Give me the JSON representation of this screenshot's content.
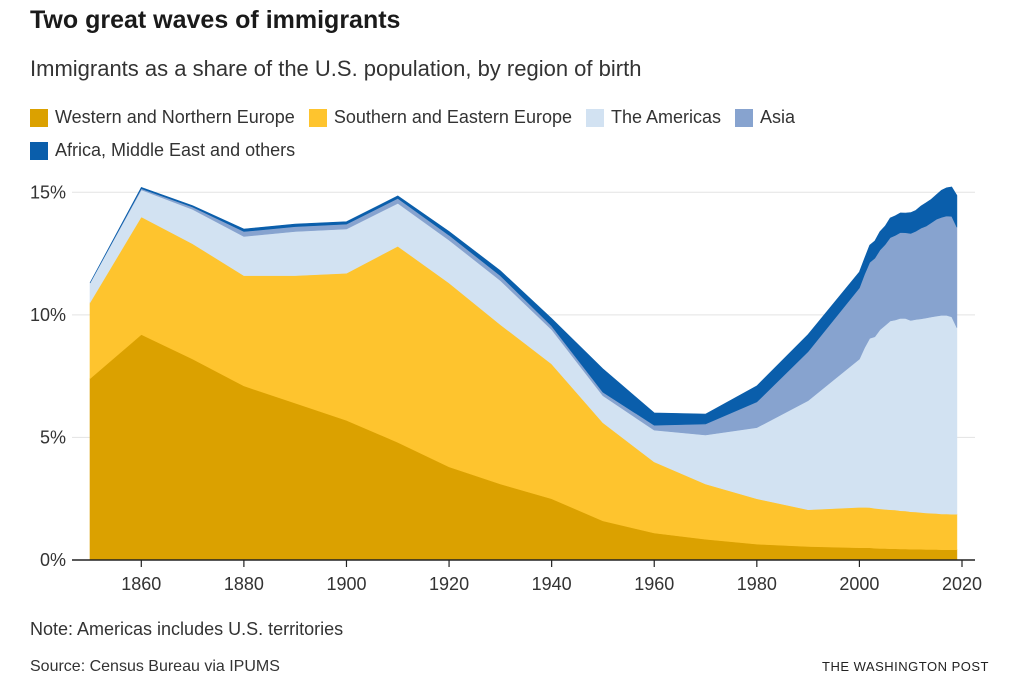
{
  "header": {
    "title": "Two great waves of immigrants",
    "subtitle": "Immigrants as a share of the U.S. population, by region of birth"
  },
  "footer": {
    "note": "Note: Americas includes U.S. territories",
    "source": "Source: Census Bureau via IPUMS",
    "brand": "THE WASHINGTON POST"
  },
  "chart_data": {
    "type": "area",
    "stacked": true,
    "x": [
      1850,
      1860,
      1870,
      1880,
      1890,
      1900,
      1910,
      1920,
      1930,
      1940,
      1950,
      1960,
      1970,
      1980,
      1990,
      2000,
      2001,
      2002,
      2003,
      2004,
      2005,
      2006,
      2007,
      2008,
      2009,
      2010,
      2011,
      2012,
      2013,
      2014,
      2015,
      2016,
      2017,
      2018,
      2019
    ],
    "series": [
      {
        "name": "Western and Northern Europe",
        "color": "#dba100",
        "values": [
          7.4,
          9.2,
          8.2,
          7.1,
          6.4,
          5.7,
          4.8,
          3.8,
          3.1,
          2.5,
          1.6,
          1.1,
          0.85,
          0.65,
          0.55,
          0.5,
          0.5,
          0.5,
          0.48,
          0.47,
          0.47,
          0.46,
          0.46,
          0.45,
          0.45,
          0.44,
          0.44,
          0.44,
          0.43,
          0.43,
          0.43,
          0.42,
          0.42,
          0.42,
          0.42
        ]
      },
      {
        "name": "Southern and Eastern Europe",
        "color": "#fec42e",
        "values": [
          3.1,
          4.8,
          4.7,
          4.5,
          5.2,
          6.0,
          8.0,
          7.5,
          6.5,
          5.5,
          4.0,
          2.9,
          2.25,
          1.85,
          1.5,
          1.65,
          1.65,
          1.64,
          1.63,
          1.62,
          1.6,
          1.59,
          1.58,
          1.56,
          1.55,
          1.53,
          1.52,
          1.5,
          1.49,
          1.48,
          1.47,
          1.46,
          1.46,
          1.45,
          1.45
        ]
      },
      {
        "name": "The Americas",
        "color": "#d2e2f2",
        "values": [
          0.8,
          1.1,
          1.4,
          1.6,
          1.8,
          1.8,
          1.75,
          1.75,
          1.8,
          1.4,
          1.1,
          1.3,
          2.0,
          2.9,
          4.45,
          6.05,
          6.5,
          6.9,
          7.0,
          7.3,
          7.5,
          7.7,
          7.75,
          7.85,
          7.85,
          7.8,
          7.85,
          7.9,
          7.95,
          8.0,
          8.05,
          8.1,
          8.1,
          8.05,
          7.6
        ]
      },
      {
        "name": "Asia",
        "color": "#87a3cf",
        "values": [
          0.0,
          0.05,
          0.1,
          0.2,
          0.2,
          0.2,
          0.2,
          0.2,
          0.2,
          0.15,
          0.15,
          0.2,
          0.45,
          1.05,
          2.0,
          2.9,
          3.0,
          3.1,
          3.2,
          3.25,
          3.3,
          3.4,
          3.45,
          3.5,
          3.5,
          3.55,
          3.6,
          3.7,
          3.75,
          3.85,
          3.95,
          4.0,
          4.05,
          4.1,
          4.1
        ]
      },
      {
        "name": "Africa, Middle East and others",
        "color": "#0a5eab",
        "values": [
          0.0,
          0.05,
          0.05,
          0.1,
          0.1,
          0.1,
          0.1,
          0.15,
          0.2,
          0.3,
          0.95,
          0.5,
          0.4,
          0.65,
          0.7,
          0.65,
          0.65,
          0.7,
          0.7,
          0.75,
          0.75,
          0.8,
          0.8,
          0.8,
          0.8,
          0.85,
          0.85,
          0.9,
          0.95,
          0.95,
          1.0,
          1.1,
          1.15,
          1.2,
          1.3
        ]
      }
    ],
    "x_ticks": [
      1860,
      1880,
      1900,
      1920,
      1940,
      1960,
      1980,
      2000,
      2020
    ],
    "y_ticks": [
      0,
      5,
      10,
      15
    ],
    "y_tick_labels": [
      "0%",
      "5%",
      "10%",
      "15%"
    ],
    "xlim": [
      1850,
      2020
    ],
    "ylim": [
      0,
      15.5
    ],
    "grid": "horizontal",
    "legend_position": "top"
  }
}
